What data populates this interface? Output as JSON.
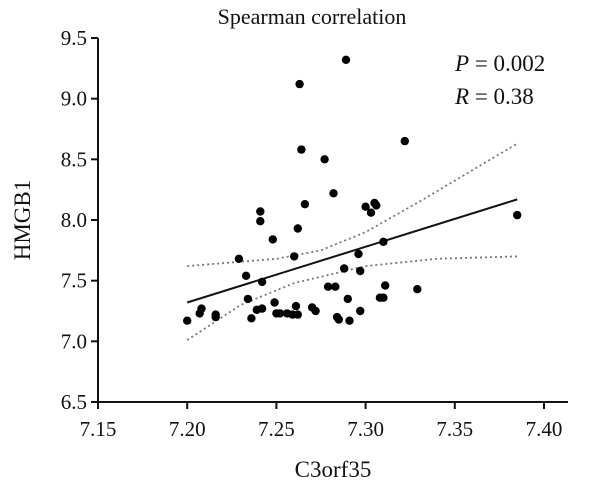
{
  "chart_data": {
    "type": "scatter",
    "title": "Spearman correlation",
    "xlabel": "C3orf35",
    "ylabel": "HMGB1",
    "xlim": [
      7.15,
      7.4
    ],
    "ylim": [
      6.5,
      9.5
    ],
    "xticks": [
      "7.15",
      "7.20",
      "7.25",
      "7.30",
      "7.35",
      "7.40"
    ],
    "yticks": [
      "6.5",
      "7.0",
      "7.5",
      "8.0",
      "8.5",
      "9.0",
      "9.5"
    ],
    "grid": false,
    "annotations": {
      "p_label": "P",
      "p_value": "= 0.002",
      "r_label": "R",
      "r_value": "= 0.38"
    },
    "regression_line": {
      "start": [
        7.2,
        7.32
      ],
      "end": [
        7.385,
        8.17
      ]
    },
    "confidence_upper": [
      [
        7.2,
        7.62
      ],
      [
        7.25,
        7.68
      ],
      [
        7.275,
        7.75
      ],
      [
        7.3,
        7.9
      ],
      [
        7.33,
        8.15
      ],
      [
        7.385,
        8.63
      ]
    ],
    "confidence_lower": [
      [
        7.2,
        7.01
      ],
      [
        7.23,
        7.3
      ],
      [
        7.26,
        7.48
      ],
      [
        7.3,
        7.62
      ],
      [
        7.34,
        7.68
      ],
      [
        7.385,
        7.7
      ]
    ],
    "points": [
      [
        7.2,
        7.17
      ],
      [
        7.207,
        7.23
      ],
      [
        7.208,
        7.27
      ],
      [
        7.216,
        7.2
      ],
      [
        7.216,
        7.22
      ],
      [
        7.229,
        7.68
      ],
      [
        7.233,
        7.54
      ],
      [
        7.234,
        7.35
      ],
      [
        7.236,
        7.19
      ],
      [
        7.239,
        7.26
      ],
      [
        7.241,
        8.07
      ],
      [
        7.241,
        7.99
      ],
      [
        7.242,
        7.49
      ],
      [
        7.242,
        7.27
      ],
      [
        7.248,
        7.84
      ],
      [
        7.249,
        7.32
      ],
      [
        7.25,
        7.23
      ],
      [
        7.252,
        7.23
      ],
      [
        7.256,
        7.23
      ],
      [
        7.259,
        7.22
      ],
      [
        7.26,
        7.7
      ],
      [
        7.261,
        7.29
      ],
      [
        7.262,
        7.22
      ],
      [
        7.262,
        7.93
      ],
      [
        7.263,
        9.12
      ],
      [
        7.264,
        8.58
      ],
      [
        7.266,
        8.13
      ],
      [
        7.27,
        7.28
      ],
      [
        7.272,
        7.25
      ],
      [
        7.277,
        8.5
      ],
      [
        7.279,
        7.45
      ],
      [
        7.282,
        8.22
      ],
      [
        7.283,
        7.45
      ],
      [
        7.284,
        7.2
      ],
      [
        7.285,
        7.18
      ],
      [
        7.288,
        7.6
      ],
      [
        7.289,
        9.32
      ],
      [
        7.29,
        7.35
      ],
      [
        7.291,
        7.17
      ],
      [
        7.296,
        7.72
      ],
      [
        7.297,
        7.25
      ],
      [
        7.297,
        7.58
      ],
      [
        7.3,
        8.11
      ],
      [
        7.303,
        8.06
      ],
      [
        7.305,
        8.14
      ],
      [
        7.306,
        8.12
      ],
      [
        7.308,
        7.36
      ],
      [
        7.31,
        7.36
      ],
      [
        7.31,
        7.82
      ],
      [
        7.311,
        7.46
      ],
      [
        7.322,
        8.65
      ],
      [
        7.329,
        7.43
      ],
      [
        7.385,
        8.04
      ]
    ]
  }
}
